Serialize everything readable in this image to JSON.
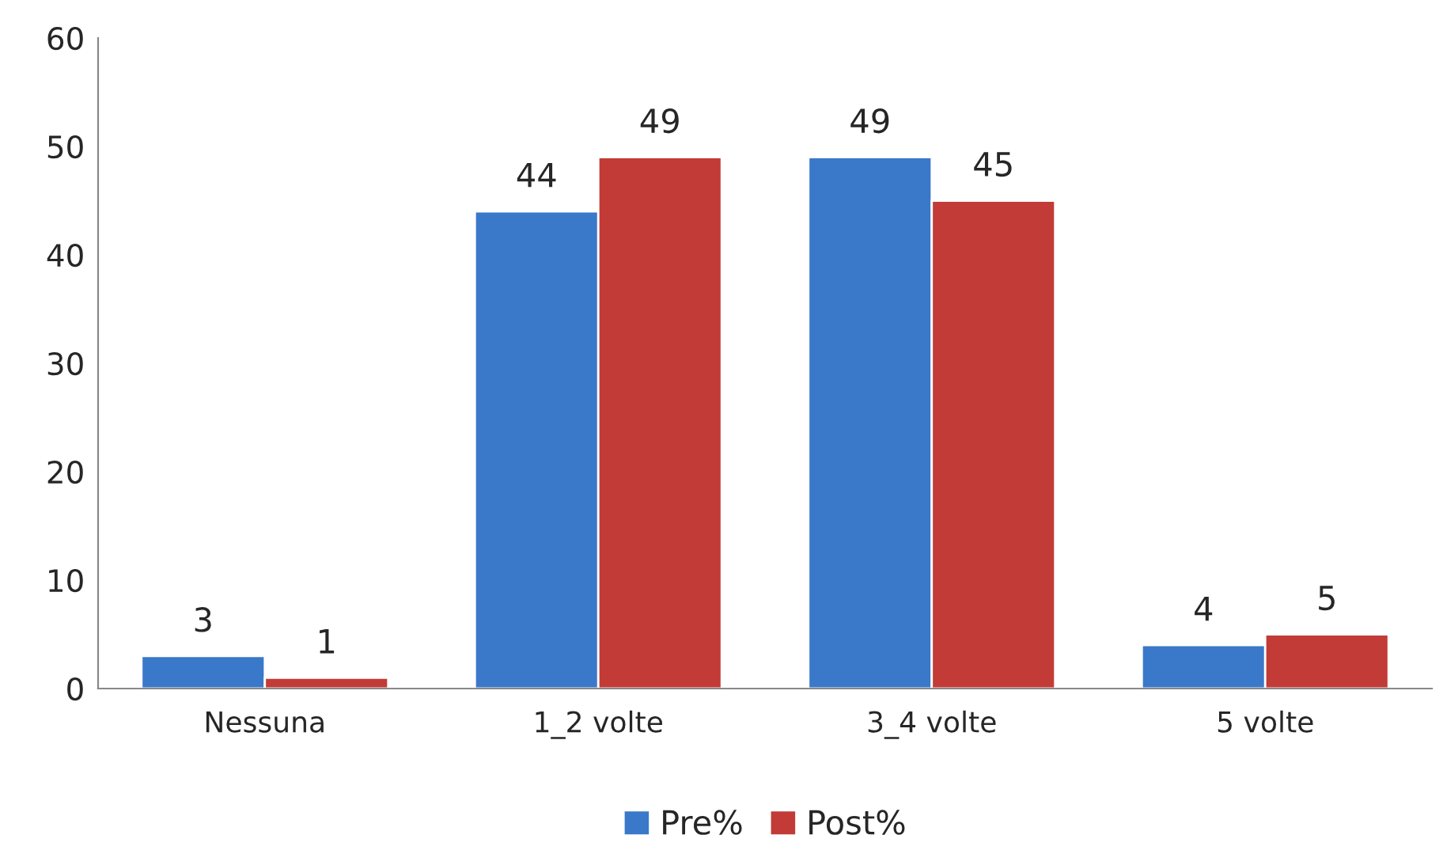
{
  "chart_data": {
    "type": "bar",
    "categories": [
      "Nessuna",
      "1_2 volte",
      "3_4 volte",
      "5 volte"
    ],
    "series": [
      {
        "name": "Pre%",
        "color": "#3a78c9",
        "values": [
          3,
          44,
          49,
          4
        ]
      },
      {
        "name": "Post%",
        "color": "#c23b37",
        "values": [
          1,
          49,
          45,
          5
        ]
      }
    ],
    "ylim": [
      0,
      60
    ],
    "yticks": [
      0,
      10,
      20,
      30,
      40,
      50,
      60
    ],
    "data_labels": true,
    "grid": false,
    "legend": "bottom"
  }
}
